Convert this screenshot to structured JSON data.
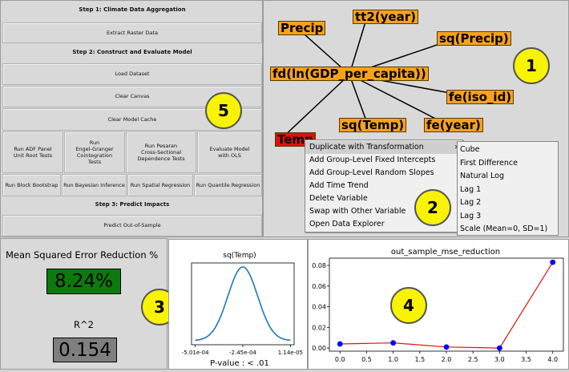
{
  "controls": {
    "step1_header": "Step 1: Climate Data Aggregation",
    "extract_raster": "Extract Raster Data",
    "step2_header": "Step 2: Construct and Evaluate Model",
    "load_dataset": "Load Dataset",
    "clear_canvas": "Clear Canvas",
    "clear_model_cache": "Clear Model Cache",
    "run_adf": "Run ADF Panel\nUnit Root Tests",
    "run_engle": "Run\nEngel-Granger\nCointegration\nTests",
    "run_pesaran": "Run Pesaran\nCross-Sectional\nDependence Tests",
    "evaluate_ols": "Evaluate Model\nwith OLS",
    "run_block_bootstrap": "Run Block Bootstrap",
    "run_bayesian": "Run Bayesian Inference",
    "run_spatial": "Run Spatial Regression",
    "run_quantile": "Run Quantile Regression",
    "step3_header": "Step 3: Predict Impacts",
    "predict_oos": "Predict Out-of-Sample"
  },
  "graph": {
    "nodes": {
      "precip": "Precip",
      "tt2": "tt2(year)",
      "sq_precip": "sq(Precip)",
      "fd_gdp": "fd(ln(GDP_per_capita))",
      "fe_iso": "fe(iso_id)",
      "temp": "Temp",
      "sq_temp": "sq(Temp)",
      "fe_year": "fe(year)"
    }
  },
  "context_menu": {
    "items": [
      "Duplicate with Transformation",
      "Add Group-Level Fixed Intercepts",
      "Add Group-Level Random Slopes",
      "Add Time Trend",
      "Delete Variable",
      "Swap with Other Variable",
      "Open Data Explorer"
    ],
    "submenu_arrow": "›",
    "submenu": [
      "Cube",
      "First Difference",
      "Natural Log",
      "Lag 1",
      "Lag 2",
      "Lag 3",
      "Scale (Mean=0, SD=1)"
    ]
  },
  "badges": {
    "b1": "1",
    "b2": "2",
    "b3": "3",
    "b4": "4",
    "b5": "5"
  },
  "metrics": {
    "mse_label": "Mean Squared Error Reduction %",
    "mse_value": "8.24%",
    "r2_label": "R^2",
    "r2_value": "0.154",
    "mse_bg": "#0c7a0c",
    "r2_bg": "#7f7f7f"
  },
  "colors": {
    "node_fill": "#f7a21b",
    "node_selected": "#e01010",
    "badge": "#f8f400",
    "density_line": "#1f77b4",
    "series_line": "#e01010",
    "series_marker": "#0000ff"
  },
  "chart_data": [
    {
      "type": "line",
      "title": "sq(Temp)",
      "xlabel": "P-value : < .01",
      "ylabel": "",
      "x_ticks": [
        "-5.01e-04",
        "-2.45e-04",
        "1.14e-05"
      ],
      "x_tick_values": [
        -0.000501,
        -0.000245,
        1.14e-05
      ],
      "curve": "normal density",
      "mean": -0.000245,
      "sd": 8e-05,
      "grid": false,
      "legend": "none"
    },
    {
      "type": "line",
      "title": "out_sample_mse_reduction",
      "xlabel": "",
      "ylabel": "",
      "x": [
        0,
        1,
        2,
        3,
        4
      ],
      "values": [
        0.004,
        0.005,
        0.001,
        0.0,
        0.083
      ],
      "xlim": [
        -0.2,
        4.2
      ],
      "ylim": [
        -0.003,
        0.087
      ],
      "x_ticks": [
        "0.0",
        "0.5",
        "1.0",
        "1.5",
        "2.0",
        "2.5",
        "3.0",
        "3.5",
        "4.0"
      ],
      "y_ticks": [
        "0.00",
        "0.02",
        "0.04",
        "0.06",
        "0.08"
      ],
      "grid": false,
      "legend": "none"
    }
  ]
}
